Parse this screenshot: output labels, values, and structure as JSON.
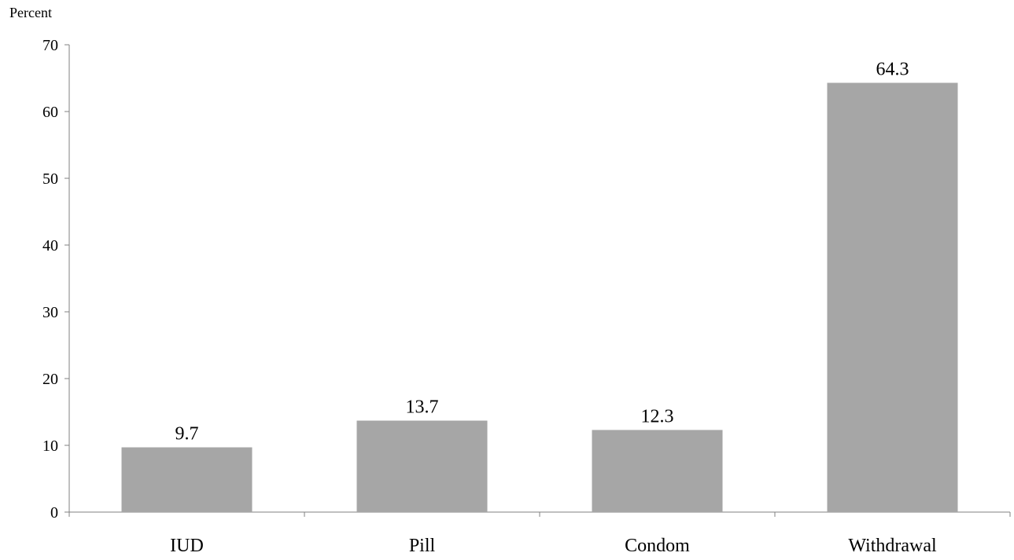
{
  "chart_data": {
    "type": "bar",
    "unit_label": "Percent",
    "categories": [
      "IUD",
      "Pill",
      "Condom",
      "Withdrawal"
    ],
    "values": [
      9.7,
      13.7,
      12.3,
      64.3
    ],
    "data_labels": [
      "9.7",
      "13.7",
      "12.3",
      "64.3"
    ],
    "y_ticks": [
      0,
      10,
      20,
      30,
      40,
      50,
      60,
      70
    ],
    "ylim": [
      0,
      70
    ],
    "grid": false,
    "legend": "none",
    "colors": {
      "bar": "#a6a6a6",
      "axis": "#808080",
      "text": "#000000"
    }
  }
}
